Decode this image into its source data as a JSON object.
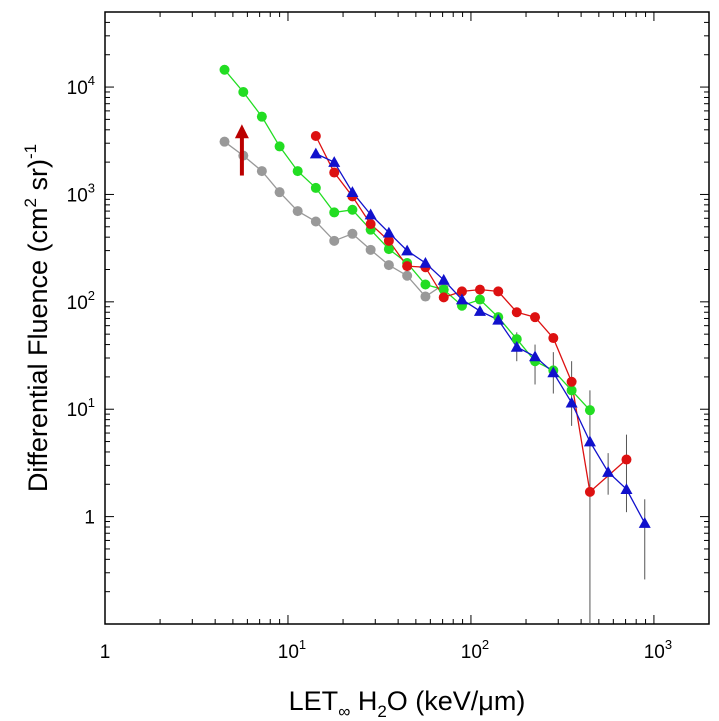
{
  "chart_data": {
    "type": "scatter",
    "title": "",
    "xlabel": {
      "prefix": "LET",
      "sub": "∞",
      "mid": " H",
      "sub2": "2",
      "suffix": "O (keV/μm)"
    },
    "ylabel": {
      "prefix": "Differential Fluence (cm",
      "sup1": "2",
      "mid": " sr)",
      "sup2": "-1"
    },
    "x_scale": "log",
    "y_scale": "log",
    "xlim": [
      1,
      2000
    ],
    "ylim": [
      0.1,
      50000
    ],
    "x_ticks": [
      {
        "value": 1,
        "base": "1",
        "exp": ""
      },
      {
        "value": 10,
        "base": "10",
        "exp": "1"
      },
      {
        "value": 100,
        "base": "10",
        "exp": "2"
      },
      {
        "value": 1000,
        "base": "10",
        "exp": "3"
      }
    ],
    "y_ticks": [
      {
        "value": 1,
        "base": "1",
        "exp": ""
      },
      {
        "value": 10,
        "base": "10",
        "exp": "1"
      },
      {
        "value": 100,
        "base": "10",
        "exp": "2"
      },
      {
        "value": 1000,
        "base": "10",
        "exp": "3"
      },
      {
        "value": 10000,
        "base": "10",
        "exp": "4"
      }
    ],
    "grid": false,
    "legend": "none",
    "series": [
      {
        "color": "#999999",
        "marker": "circle",
        "x": [
          4.5,
          5.7,
          7.2,
          9.0,
          11.3,
          14.2,
          17.9,
          22.5,
          28.3,
          35.6,
          44.8,
          56.4,
          71.0
        ],
        "y": [
          3100,
          2300,
          1650,
          1050,
          700,
          560,
          370,
          430,
          305,
          220,
          175,
          112,
          145
        ]
      },
      {
        "color": "#22dd22",
        "marker": "circle",
        "x": [
          4.5,
          5.7,
          7.2,
          9.0,
          11.3,
          14.2,
          17.9,
          22.5,
          28.3,
          35.6,
          44.8,
          56.4,
          71.0,
          89.3,
          112,
          141,
          178,
          224,
          282,
          355,
          447
        ],
        "y": [
          14500,
          9000,
          5300,
          2800,
          1650,
          1150,
          680,
          720,
          470,
          310,
          230,
          145,
          130,
          92,
          105,
          72,
          45,
          28,
          23,
          15,
          9.8
        ]
      },
      {
        "color": "#dd1111",
        "marker": "circle",
        "x": [
          14.2,
          17.9,
          22.5,
          28.3,
          35.6,
          44.8,
          56.4,
          71.0,
          89.3,
          112,
          141,
          178,
          224,
          282,
          355,
          447,
          708
        ],
        "y": [
          3500,
          1600,
          960,
          530,
          370,
          215,
          210,
          110,
          125,
          130,
          125,
          80,
          72,
          46,
          18,
          1.7,
          3.4
        ]
      },
      {
        "color": "#1111cc",
        "marker": "triangle",
        "x": [
          14.2,
          17.9,
          22.5,
          28.3,
          35.6,
          44.8,
          56.4,
          71.0,
          89.3,
          112,
          141,
          178,
          224,
          282,
          355,
          447,
          562,
          708,
          891
        ],
        "y": [
          2400,
          2000,
          1050,
          650,
          440,
          300,
          230,
          160,
          105,
          82,
          68,
          38,
          31,
          22,
          11.5,
          5.0,
          2.6,
          1.8,
          0.87
        ]
      }
    ],
    "error_bars": [
      {
        "x": 447,
        "y_low": 0.1,
        "y_high": 15
      },
      {
        "x": 891,
        "y_low": 0.26,
        "y_high": 1.45
      },
      {
        "x": 708,
        "y_low": 1.1,
        "y_high": 5.8
      },
      {
        "x": 562,
        "y_low": 1.6,
        "y_high": 3.9
      },
      {
        "x": 355,
        "y_low": 7,
        "y_high": 28
      },
      {
        "x": 282,
        "y_low": 14,
        "y_high": 34
      },
      {
        "x": 224,
        "y_low": 17,
        "y_high": 40
      },
      {
        "x": 178,
        "y_low": 28,
        "y_high": 52
      }
    ],
    "annotations": [
      {
        "type": "arrow",
        "color": "#bb0000",
        "direction": "up",
        "x": 5.6,
        "y_from": 1500,
        "y_to": 4500
      }
    ]
  }
}
